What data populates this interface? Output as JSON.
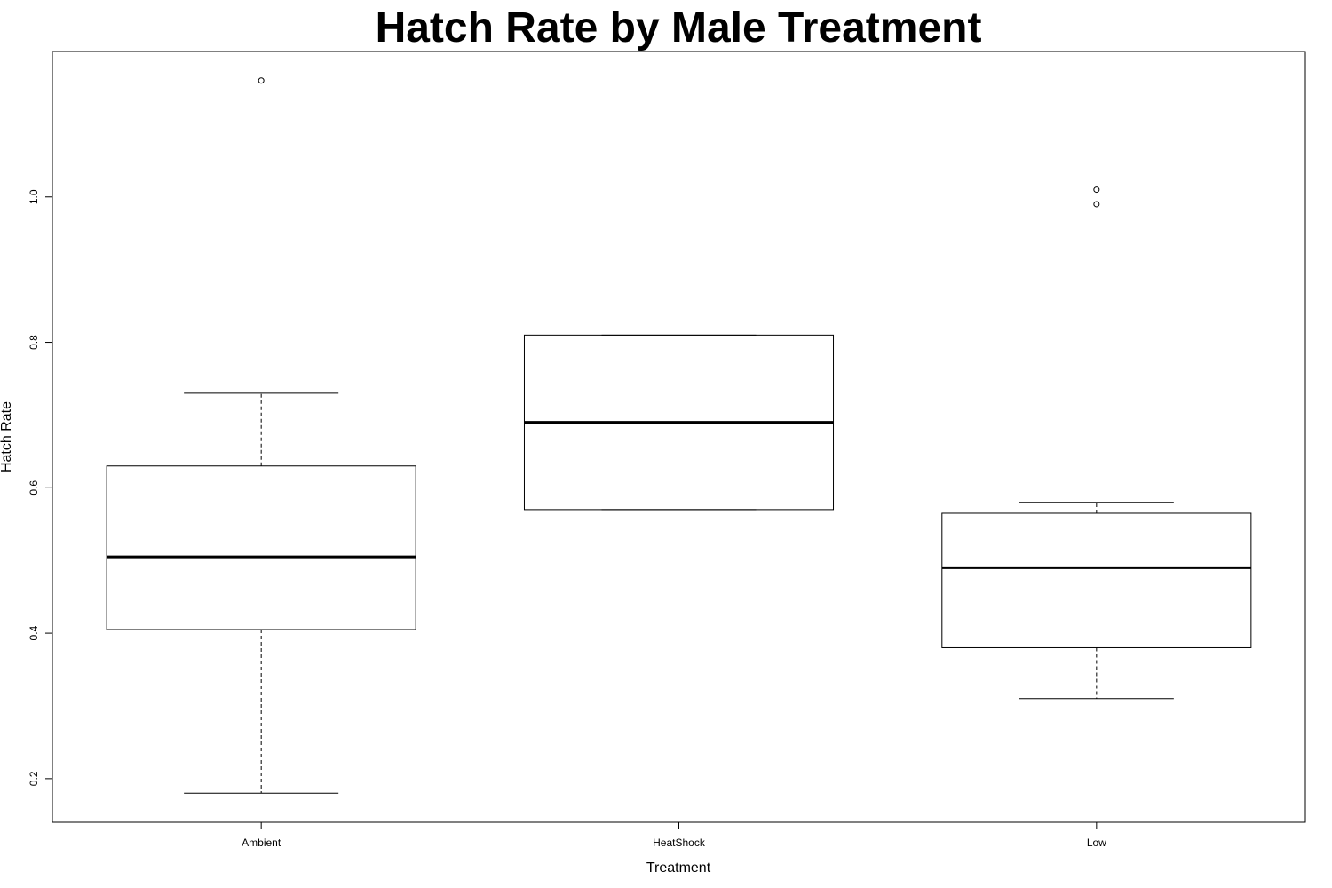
{
  "chart_data": {
    "type": "box",
    "title": "Hatch Rate by Male Treatment",
    "xlabel": "Treatment",
    "ylabel": "Hatch Rate",
    "ylim": [
      0.14,
      1.2
    ],
    "yticks": [
      0.2,
      0.4,
      0.6,
      0.8,
      1.0
    ],
    "ytick_labels": [
      "0.2",
      "0.4",
      "0.6",
      "0.8",
      "1.0"
    ],
    "grid": false,
    "legend": "none",
    "groups": [
      {
        "category": "Ambient",
        "whisker_low": 0.18,
        "q1": 0.405,
        "median": 0.505,
        "q3": 0.63,
        "whisker_high": 0.73,
        "outliers": [
          1.16
        ]
      },
      {
        "category": "HeatShock",
        "whisker_low": 0.57,
        "q1": 0.57,
        "median": 0.69,
        "q3": 0.81,
        "whisker_high": 0.81,
        "outliers": []
      },
      {
        "category": "Low",
        "whisker_low": 0.31,
        "q1": 0.38,
        "median": 0.49,
        "q3": 0.565,
        "whisker_high": 0.58,
        "outliers": [
          0.99,
          1.01
        ]
      }
    ]
  }
}
